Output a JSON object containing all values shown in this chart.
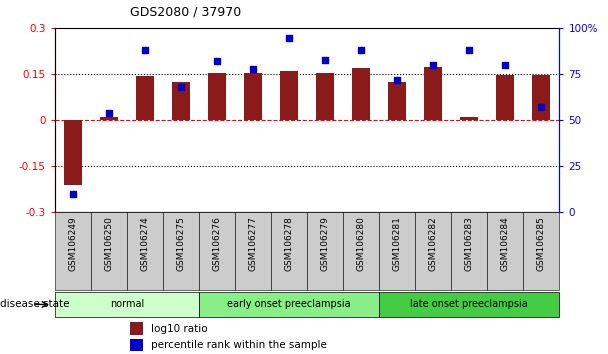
{
  "title": "GDS2080 / 37970",
  "samples": [
    "GSM106249",
    "GSM106250",
    "GSM106274",
    "GSM106275",
    "GSM106276",
    "GSM106277",
    "GSM106278",
    "GSM106279",
    "GSM106280",
    "GSM106281",
    "GSM106282",
    "GSM106283",
    "GSM106284",
    "GSM106285"
  ],
  "log10_ratio": [
    -0.21,
    0.01,
    0.145,
    0.125,
    0.155,
    0.155,
    0.16,
    0.153,
    0.17,
    0.125,
    0.175,
    0.01,
    0.148,
    0.148
  ],
  "percentile_rank": [
    10,
    54,
    88,
    68,
    82,
    78,
    95,
    83,
    88,
    72,
    80,
    88,
    80,
    57
  ],
  "bar_color": "#8B1A1A",
  "dot_color": "#0000CD",
  "ylim_left": [
    -0.3,
    0.3
  ],
  "ylim_right": [
    0,
    100
  ],
  "yticks_left": [
    -0.3,
    -0.15,
    0,
    0.15,
    0.3
  ],
  "yticks_right": [
    0,
    25,
    50,
    75,
    100
  ],
  "ytick_labels_left": [
    "-0.3",
    "-0.15",
    "0",
    "0.15",
    "0.3"
  ],
  "ytick_labels_right": [
    "0",
    "25",
    "50",
    "75",
    "100%"
  ],
  "disease_groups": [
    {
      "label": "normal",
      "start": 0,
      "end": 4,
      "color": "#ccffcc"
    },
    {
      "label": "early onset preeclampsia",
      "start": 4,
      "end": 9,
      "color": "#88ee88"
    },
    {
      "label": "late onset preeclampsia",
      "start": 9,
      "end": 14,
      "color": "#44cc44"
    }
  ],
  "disease_state_label": "disease state",
  "legend_bar_label": "log10 ratio",
  "legend_dot_label": "percentile rank within the sample",
  "background_color": "#ffffff",
  "tick_area_color": "#cccccc",
  "normal_color": "#ccffcc",
  "early_color": "#88ee88",
  "late_color": "#44cc44"
}
